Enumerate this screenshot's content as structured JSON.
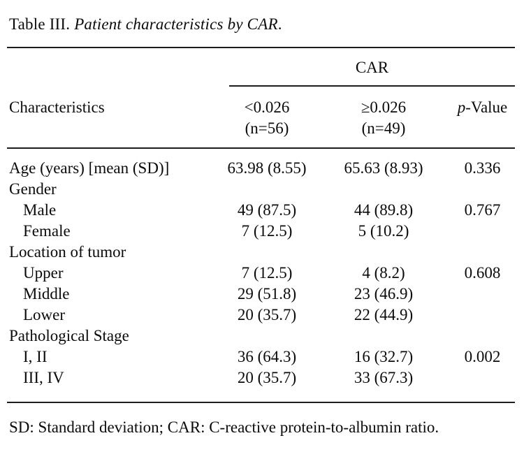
{
  "page": {
    "background": "#ffffff",
    "text_color": "#0b0b0b",
    "rule_color": "#1c1c1c"
  },
  "title": {
    "prefix": "Table III. ",
    "italic": "Patient characteristics by CAR",
    "suffix": "."
  },
  "table": {
    "group_header": "CAR",
    "header": {
      "characteristics": "Characteristics",
      "col_low_line1": "<0.026",
      "col_low_line2": "(n=56)",
      "col_high_line1": "≥0.026",
      "col_high_line2": "(n=49)",
      "pvalue_italic": "p",
      "pvalue_rest": "-Value"
    },
    "rows": [
      {
        "label": "Age (years) [mean (SD)]",
        "low": "63.98 (8.55)",
        "high": "65.63 (8.93)",
        "p": "0.336"
      },
      {
        "label": "Gender",
        "low": "",
        "high": "",
        "p": ""
      },
      {
        "label": "Male",
        "low": "49 (87.5)",
        "high": "44 (89.8)",
        "p": "0.767"
      },
      {
        "label": "Female",
        "low": "7 (12.5)",
        "high": "5 (10.2)",
        "p": ""
      },
      {
        "label": "Location of tumor",
        "low": "",
        "high": "",
        "p": ""
      },
      {
        "label": "Upper",
        "low": "7 (12.5)",
        "high": "4 (8.2)",
        "p": "0.608"
      },
      {
        "label": "Middle",
        "low": "29 (51.8)",
        "high": "23 (46.9)",
        "p": ""
      },
      {
        "label": "Lower",
        "low": "20 (35.7)",
        "high": "22 (44.9)",
        "p": ""
      },
      {
        "label": "Pathological Stage",
        "low": "",
        "high": "",
        "p": ""
      },
      {
        "label": "I, II",
        "low": "36 (64.3)",
        "high": "16 (32.7)",
        "p": "0.002"
      },
      {
        "label": "III, IV",
        "low": "20 (35.7)",
        "high": "33 (67.3)",
        "p": ""
      }
    ]
  },
  "footnote": "SD: Standard deviation; CAR: C-reactive protein-to-albumin ratio."
}
